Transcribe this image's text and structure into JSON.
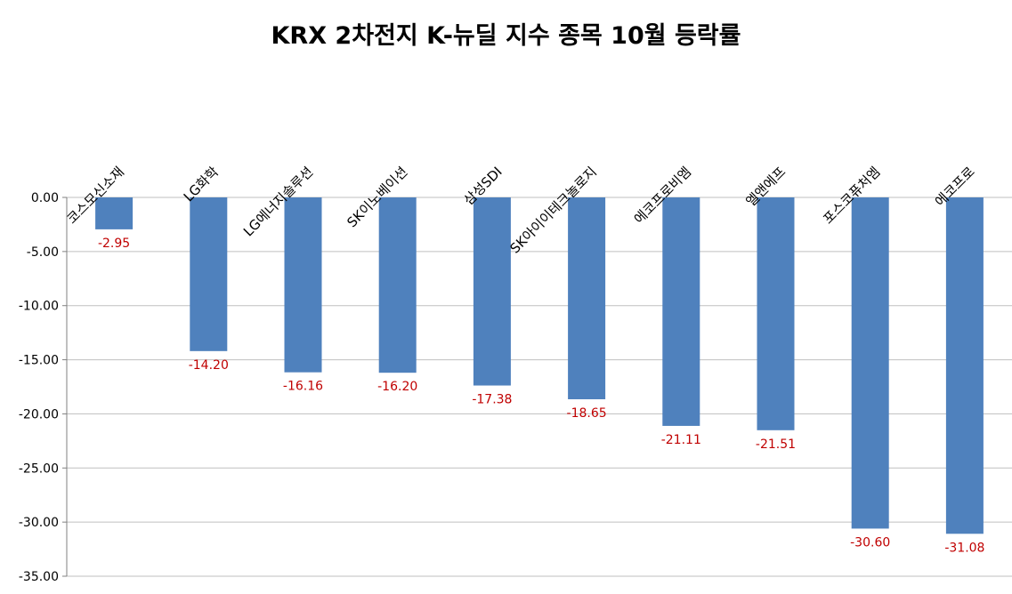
{
  "chart_data": {
    "type": "bar",
    "title": "KRX 2차전지 K-뉴딜 지수 종목 10월 등락률",
    "xlabel": "",
    "ylabel": "",
    "categories": [
      "코스모신소재",
      "LG화학",
      "LG에너지솔루션",
      "SK이노베이션",
      "삼성SDI",
      "SK아이이테크놀로지",
      "에코프로비엠",
      "엘앤에프",
      "포스코퓨처엠",
      "에코프로"
    ],
    "values": [
      -2.95,
      -14.2,
      -16.16,
      -16.2,
      -17.38,
      -18.65,
      -21.11,
      -21.51,
      -30.6,
      -31.08
    ],
    "value_labels": [
      "-2.95",
      "-14.20",
      "-16.16",
      "-16.20",
      "-17.38",
      "-18.65",
      "-21.11",
      "-21.51",
      "-30.60",
      "-31.08"
    ],
    "ylim": [
      -35,
      0
    ],
    "yticks": [
      "0.00",
      "-5.00",
      "-10.00",
      "-15.00",
      "-20.00",
      "-25.00",
      "-30.00",
      "-35.00"
    ],
    "grid": true,
    "legend": "none",
    "colors": {
      "bar": "#4F81BD",
      "label": "#C00000",
      "grid": "#BFBFBF"
    }
  }
}
